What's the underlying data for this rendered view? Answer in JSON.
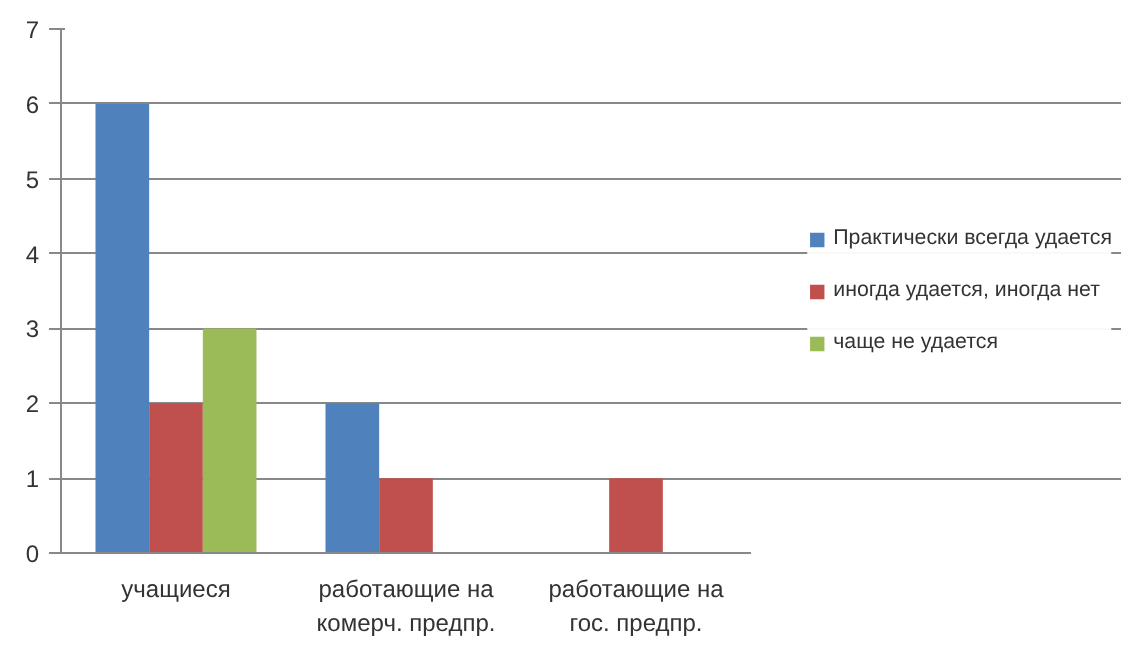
{
  "chart_data": {
    "type": "bar",
    "categories": [
      "учащиеся",
      "работающие на\nкомерч. предпр.",
      "работающие на\nгос. предпр."
    ],
    "series": [
      {
        "name": "Практически всегда удается",
        "color": "#4f81bd",
        "values": [
          6,
          2,
          0
        ]
      },
      {
        "name": "иногда удается, иногда нет",
        "color": "#c0504d",
        "values": [
          2,
          1,
          1
        ]
      },
      {
        "name": "чаще не удается",
        "color": "#9bbb59",
        "values": [
          3,
          0,
          0
        ]
      }
    ],
    "ylim": [
      0,
      7
    ],
    "yticks": [
      0,
      1,
      2,
      3,
      4,
      5,
      6,
      7
    ],
    "grid": "y",
    "legend": "right"
  }
}
